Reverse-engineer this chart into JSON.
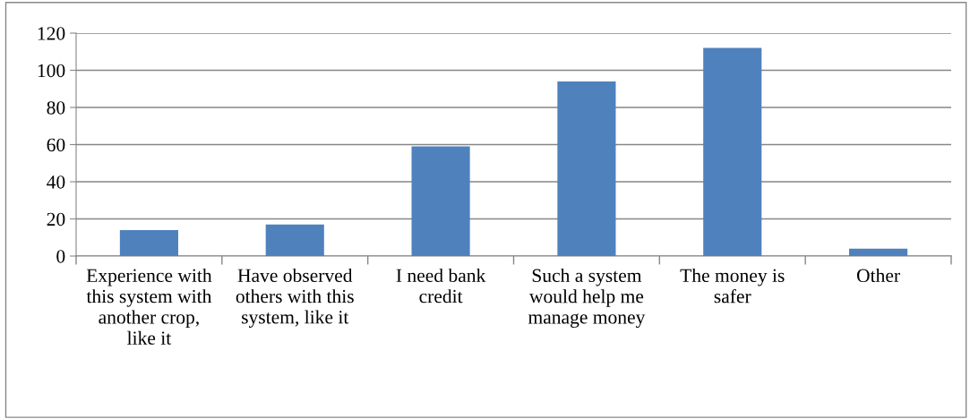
{
  "chart_data": {
    "type": "bar",
    "categories": [
      "Experience with this system with another crop, like it",
      "Have observed others with this system, like it",
      "I need bank credit",
      "Such a system would help me manage money",
      "The money is safer",
      "Other"
    ],
    "values": [
      14,
      17,
      59,
      94,
      112,
      4
    ],
    "color": "#4f81bd",
    "ylim": [
      0,
      120
    ],
    "yticks": [
      0,
      20,
      40,
      60,
      80,
      100,
      120
    ],
    "grid": "y",
    "legend": false
  }
}
